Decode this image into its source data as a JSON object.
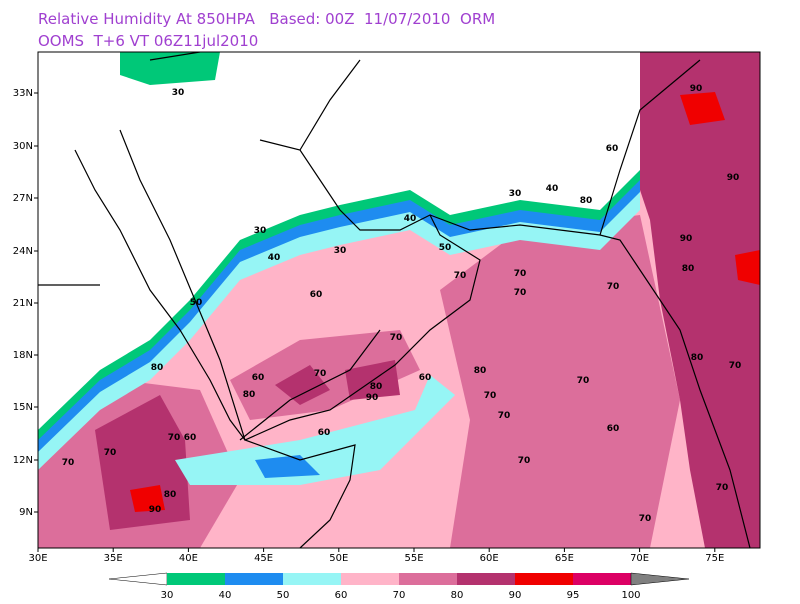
{
  "header": {
    "line1": "Relative Humidity At 850HPA   Based: 00Z  11/07/2010  ORM",
    "line2": "OOMS  T+6 VT 06Z11jul2010"
  },
  "axes": {
    "lat_labels": [
      "33N",
      "30N",
      "27N",
      "24N",
      "21N",
      "18N",
      "15N",
      "12N",
      "9N"
    ],
    "lon_labels": [
      "30E",
      "35E",
      "40E",
      "45E",
      "50E",
      "55E",
      "60E",
      "65E",
      "70E",
      "75E"
    ]
  },
  "legend": {
    "levels": [
      "30",
      "40",
      "50",
      "60",
      "70",
      "80",
      "90",
      "95",
      "100"
    ],
    "colors": [
      "#ffffff",
      "#00c878",
      "#1e8cf0",
      "#96f5f5",
      "#ffb4c8",
      "#dc6e9b",
      "#b4326e",
      "#f00000",
      "#dc0064",
      "#808080"
    ]
  },
  "contour_labels": [
    "30",
    "30",
    "30",
    "30",
    "40",
    "40",
    "40",
    "50",
    "50",
    "60",
    "60",
    "60",
    "60",
    "60",
    "60",
    "70",
    "70",
    "70",
    "70",
    "70",
    "70",
    "70",
    "70",
    "70",
    "70",
    "70",
    "70",
    "70",
    "70",
    "70",
    "70",
    "80",
    "80",
    "80",
    "80",
    "80",
    "80",
    "80",
    "90",
    "90",
    "90",
    "90",
    "90",
    "60",
    "80"
  ]
}
